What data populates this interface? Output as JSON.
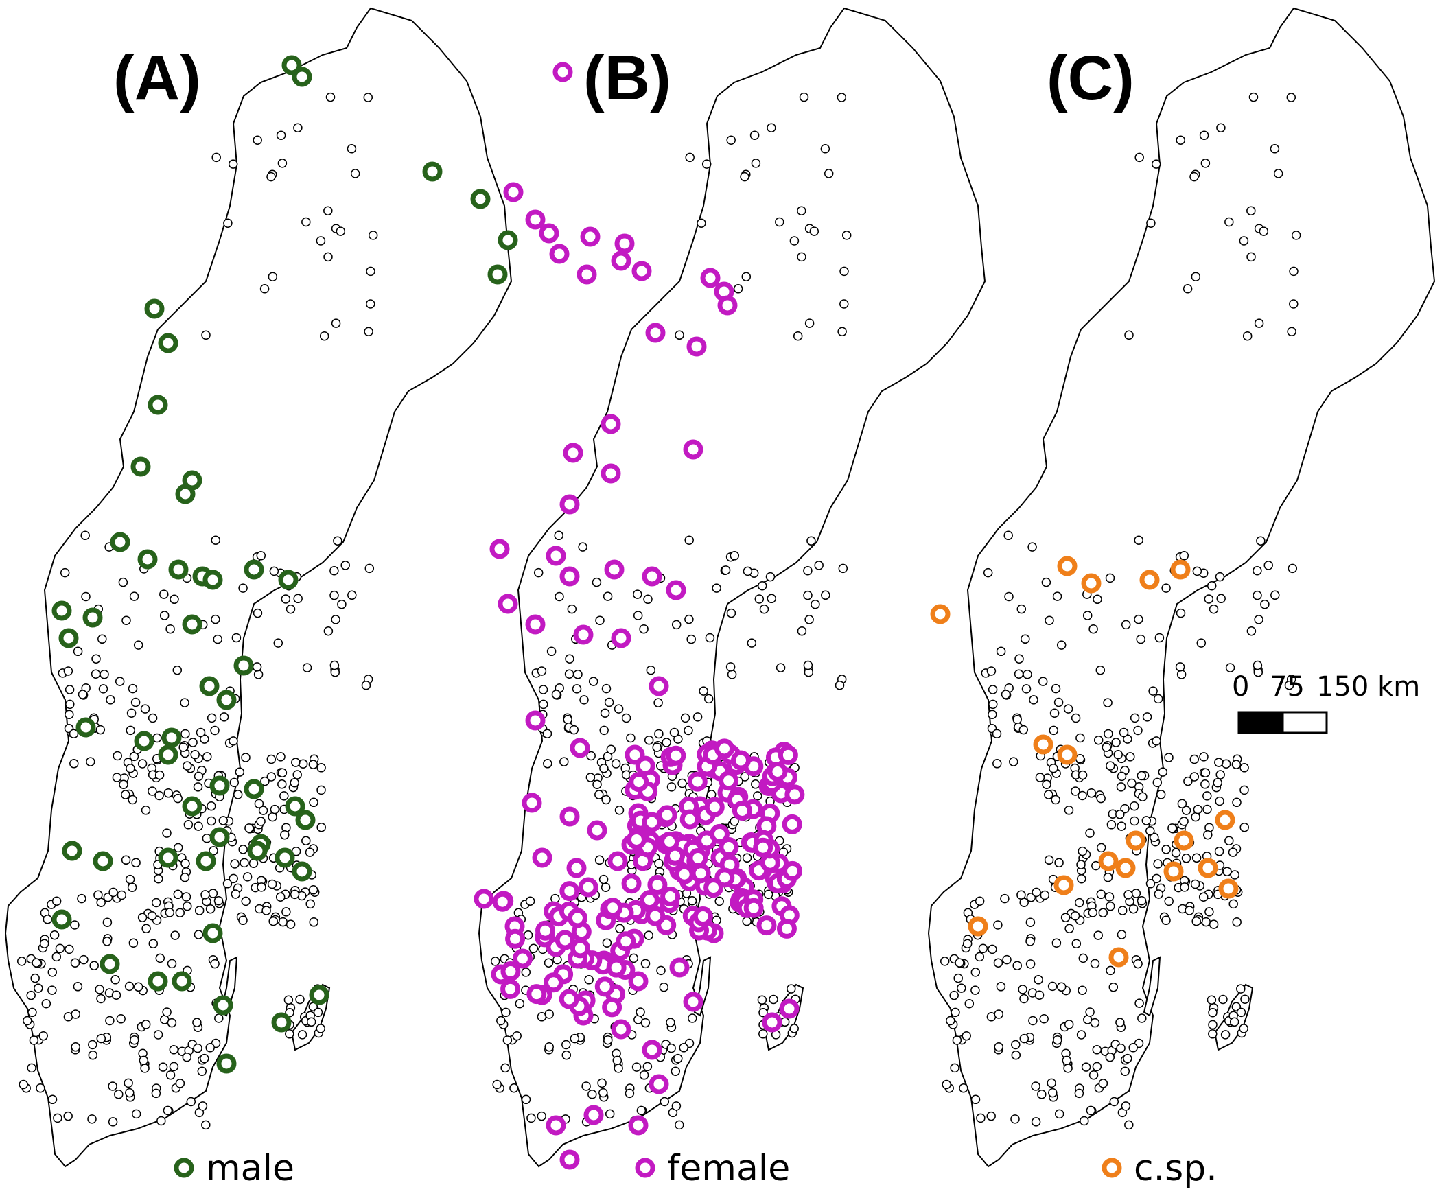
{
  "panels": [
    {
      "label": "(A)",
      "legend_label": "male",
      "color": "#27621b"
    },
    {
      "label": "(B)",
      "legend_label": "female",
      "color": "#c21ac2"
    },
    {
      "label": "(C)",
      "legend_label": "c.sp.",
      "color": "#ef7f1a"
    }
  ],
  "scale_bar": {
    "ticks": [
      "0",
      "75",
      "150 km"
    ]
  },
  "background_marker_color": "#ffffff",
  "outline_color": "#000000"
}
